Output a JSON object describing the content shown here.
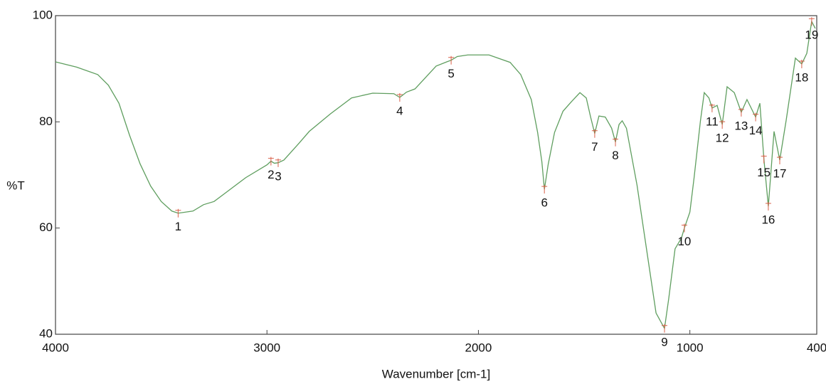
{
  "chart_data": {
    "type": "line",
    "xlabel": "Wavenumber [cm-1]",
    "ylabel": "%T",
    "xlim": [
      4000,
      400
    ],
    "ylim": [
      40,
      100
    ],
    "xticks": [
      4000,
      3000,
      2000,
      1000,
      400
    ],
    "yticks": [
      40,
      60,
      80,
      100
    ],
    "color": "#5f9e5f",
    "peak_color": "#d9604a",
    "x": [
      4000,
      3900,
      3800,
      3750,
      3700,
      3650,
      3600,
      3550,
      3500,
      3450,
      3420,
      3350,
      3300,
      3250,
      3200,
      3100,
      3000,
      2981,
      2965,
      2947,
      2920,
      2850,
      2800,
      2700,
      2600,
      2500,
      2400,
      2372,
      2340,
      2300,
      2200,
      2150,
      2129,
      2100,
      2050,
      1950,
      1850,
      1800,
      1750,
      1720,
      1700,
      1688,
      1670,
      1640,
      1600,
      1560,
      1520,
      1490,
      1470,
      1450,
      1430,
      1400,
      1370,
      1352,
      1335,
      1320,
      1300,
      1250,
      1200,
      1160,
      1120,
      1100,
      1070,
      1040,
      1026,
      1000,
      980,
      950,
      932,
      910,
      895,
      871,
      847,
      824,
      790,
      757,
      730,
      689,
      669,
      650,
      629,
      602,
      575,
      545,
      501,
      471,
      447,
      424,
      407
    ],
    "values": [
      91.3,
      90.3,
      88.9,
      86.9,
      83.5,
      77.5,
      72.1,
      67.9,
      65,
      63.2,
      62.8,
      63.2,
      64.4,
      65,
      66.5,
      69.5,
      71.9,
      72.6,
      72.2,
      72.3,
      72.8,
      75.9,
      78.2,
      81.5,
      84.5,
      85.4,
      85.3,
      84.6,
      85.6,
      86.2,
      90.5,
      91.3,
      91.6,
      92.3,
      92.6,
      92.6,
      91.2,
      88.9,
      84.2,
      78,
      72.5,
      67.3,
      72,
      78,
      82,
      83.8,
      85.5,
      84.5,
      81,
      77.8,
      81.1,
      80.9,
      78.8,
      76.2,
      79.5,
      80.2,
      78.8,
      68.1,
      54.7,
      44,
      41.1,
      46.7,
      56.1,
      58.1,
      60,
      63,
      69.5,
      80.2,
      85.5,
      84.5,
      82.6,
      83.1,
      79.5,
      86.6,
      85.5,
      81.8,
      84.2,
      80.9,
      83.5,
      73,
      64.1,
      78.2,
      72.8,
      80.2,
      92,
      90.9,
      92.9,
      98.9,
      97.6
    ],
    "peaks": [
      {
        "label": "1",
        "x": 3420,
        "y": 62.8
      },
      {
        "label": "2",
        "x": 2981,
        "y": 72.6
      },
      {
        "label": "3",
        "x": 2947,
        "y": 72.3
      },
      {
        "label": "4",
        "x": 2372,
        "y": 84.6
      },
      {
        "label": "5",
        "x": 2129,
        "y": 91.6
      },
      {
        "label": "6",
        "x": 1688,
        "y": 67.3
      },
      {
        "label": "7",
        "x": 1450,
        "y": 77.8
      },
      {
        "label": "8",
        "x": 1352,
        "y": 76.2
      },
      {
        "label": "9",
        "x": 1120,
        "y": 41.1
      },
      {
        "label": "10",
        "x": 1026,
        "y": 60
      },
      {
        "label": "11",
        "x": 895,
        "y": 82.6
      },
      {
        "label": "12",
        "x": 847,
        "y": 79.5
      },
      {
        "label": "13",
        "x": 757,
        "y": 81.8
      },
      {
        "label": "14",
        "x": 689,
        "y": 80.9
      },
      {
        "label": "15",
        "x": 650,
        "y": 73
      },
      {
        "label": "16",
        "x": 629,
        "y": 64.1
      },
      {
        "label": "17",
        "x": 575,
        "y": 72.8
      },
      {
        "label": "18",
        "x": 471,
        "y": 90.9
      },
      {
        "label": "19",
        "x": 424,
        "y": 98.9
      }
    ]
  }
}
